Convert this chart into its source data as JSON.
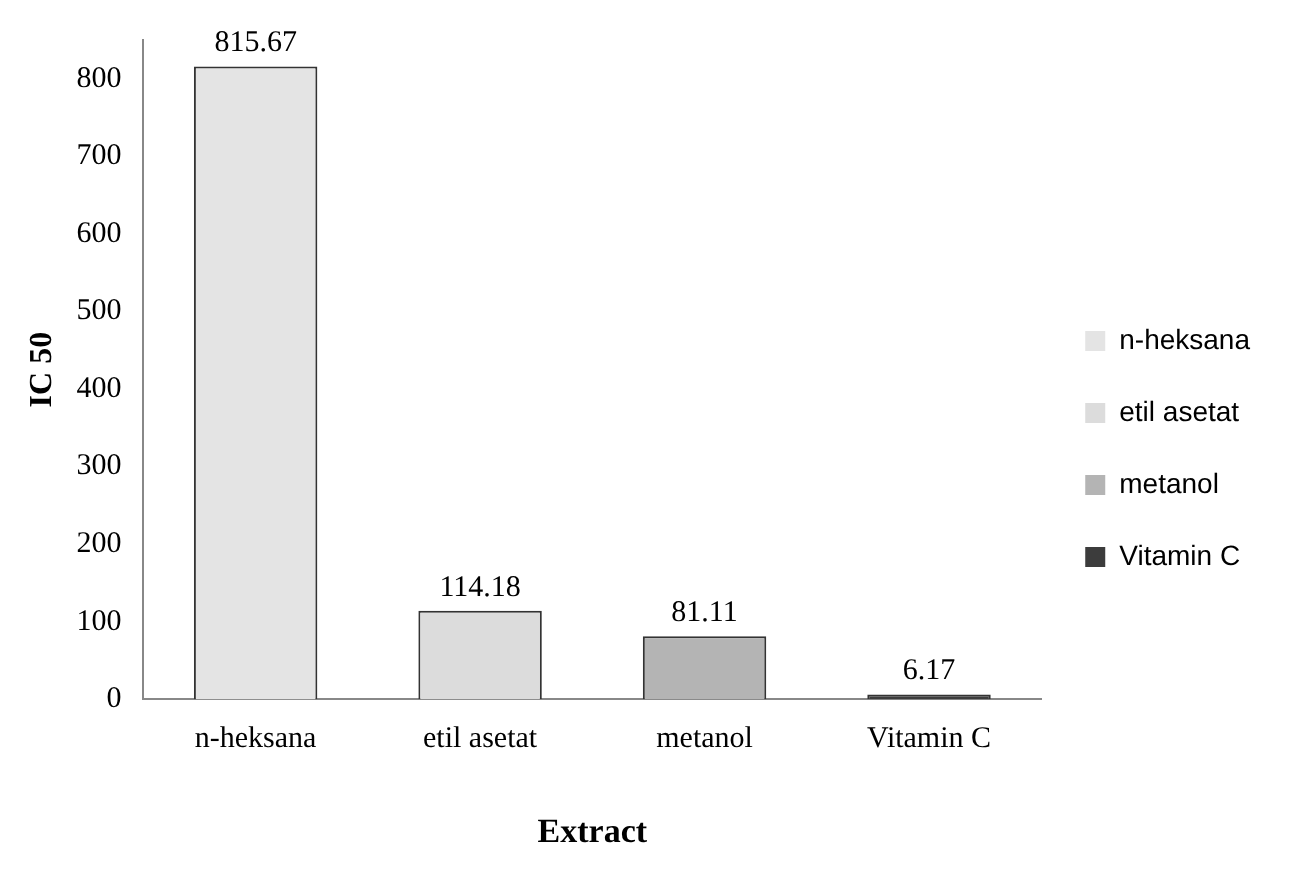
{
  "chart_data": {
    "type": "bar",
    "xlabel": "Extract",
    "ylabel": "IC 50",
    "categories": [
      "n-heksana",
      "etil asetat",
      "metanol",
      "Vitamin C"
    ],
    "series": [
      {
        "name": "n-heksana",
        "color": "#e4e4e4",
        "values": [
          815.67,
          null,
          null,
          null
        ]
      },
      {
        "name": "etil asetat",
        "color": "#dcdcdc",
        "values": [
          null,
          114.18,
          null,
          null
        ]
      },
      {
        "name": "metanol",
        "color": "#b4b4b4",
        "values": [
          null,
          null,
          81.11,
          null
        ]
      },
      {
        "name": "Vitamin C",
        "color": "#3c3c3c",
        "values": [
          null,
          null,
          null,
          6.17
        ]
      }
    ],
    "ylim": [
      0,
      850
    ],
    "yticks": [
      0,
      100,
      200,
      300,
      400,
      500,
      600,
      700,
      800
    ],
    "grid": false,
    "legend": "right",
    "data_labels": true
  }
}
